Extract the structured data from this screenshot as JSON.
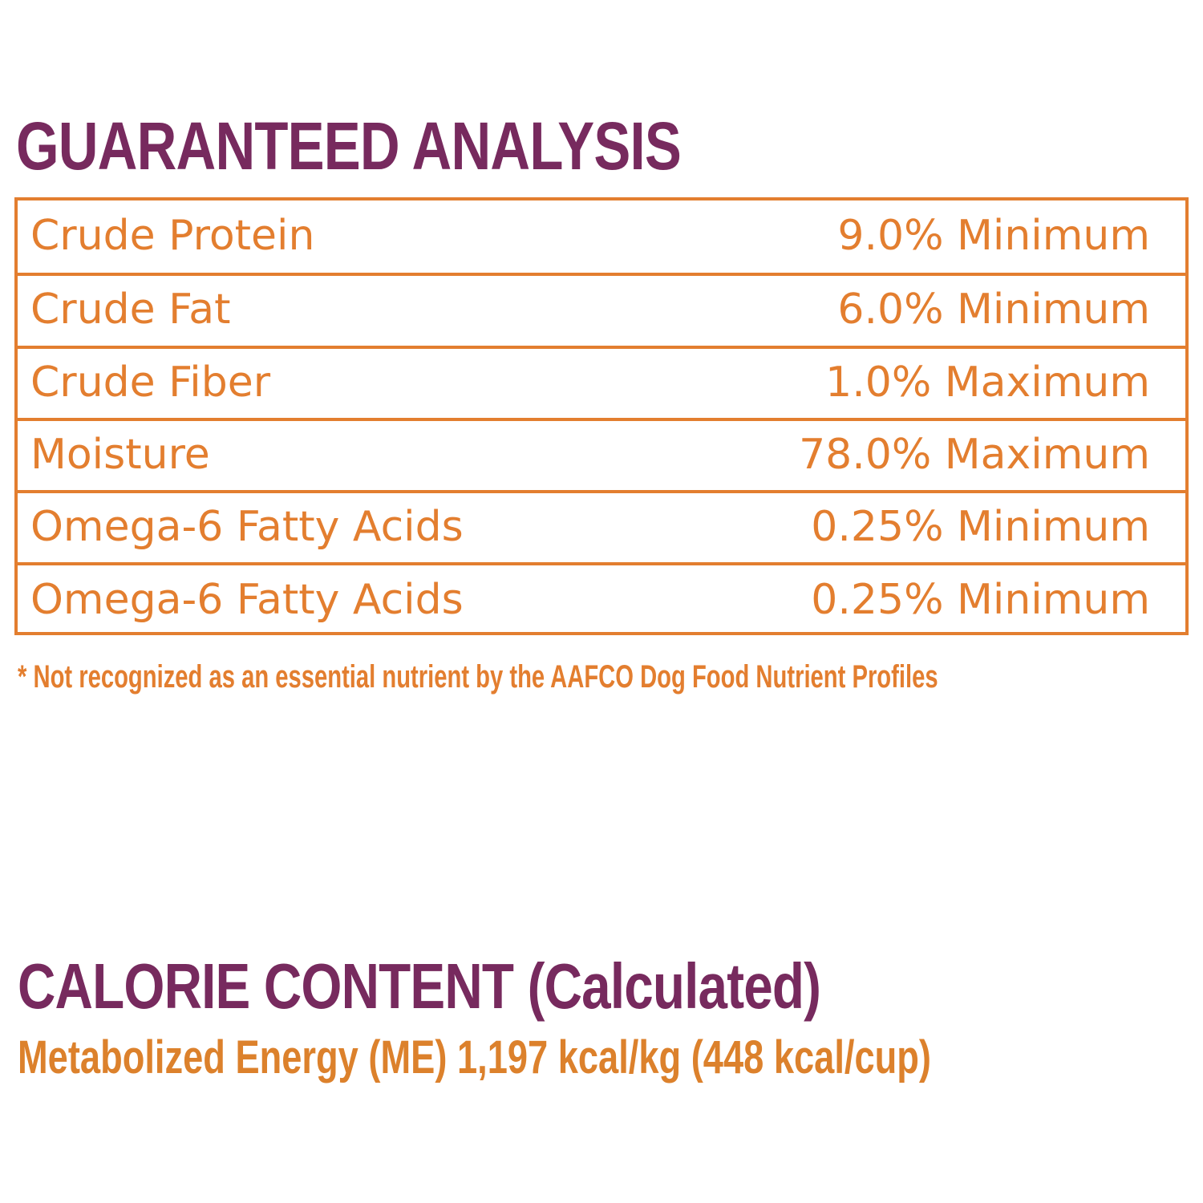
{
  "guaranteed_analysis": {
    "title": "GUARANTEED ANALYSIS",
    "rows": [
      {
        "name": "Crude Protein",
        "value": "9.0% Minimum"
      },
      {
        "name": "Crude Fat",
        "value": "6.0% Minimum"
      },
      {
        "name": "Crude Fiber",
        "value": "1.0% Maximum"
      },
      {
        "name": "Moisture",
        "value": "78.0% Maximum"
      },
      {
        "name": "Omega-6 Fatty Acids",
        "value": "0.25% Minimum"
      },
      {
        "name": "Omega-6 Fatty Acids",
        "value": "0.25% Minimum"
      }
    ],
    "footnote": "* Not recognized as an essential nutrient by the AAFCO Dog Food Nutrient Profiles"
  },
  "calorie_content": {
    "title": "CALORIE CONTENT (Calculated)",
    "metabolized_energy": "Metabolized Energy (ME) 1,197 kcal/kg (448 kcal/cup)"
  },
  "colors": {
    "heading": "#772a5e",
    "accent_orange": "#e37e2f",
    "background": "#ffffff"
  }
}
